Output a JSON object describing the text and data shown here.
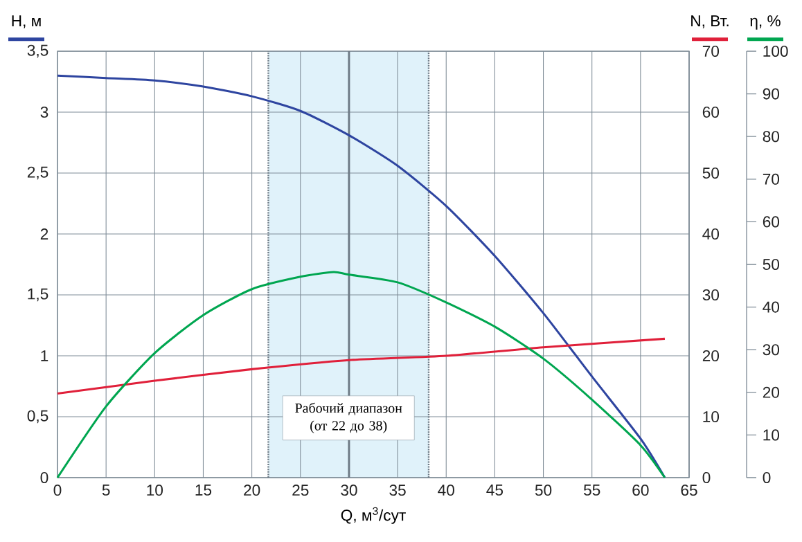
{
  "chart_data": {
    "type": "line",
    "xlabel": "Q, м$^{3}$/сут",
    "ylabel": "H, м",
    "y2label": "N, Вт.",
    "y3label": "η, %",
    "xlim": [
      0,
      65
    ],
    "xticks": [
      0,
      5,
      10,
      15,
      20,
      25,
      30,
      35,
      40,
      45,
      50,
      55,
      60,
      65
    ],
    "ylim": [
      0,
      3.5
    ],
    "yticks": [
      0,
      {
        "value": 0.5,
        "label": "0,5"
      },
      1,
      {
        "value": 1.5,
        "label": "1,5"
      },
      2,
      {
        "value": 2.5,
        "label": "2,5"
      },
      3,
      {
        "value": 3.5,
        "label": "3,5"
      }
    ],
    "y2lim": [
      0,
      70
    ],
    "y2ticks": [
      0,
      10,
      20,
      30,
      40,
      50,
      60,
      70
    ],
    "y3lim": [
      0,
      100
    ],
    "y3ticks": [
      0,
      10,
      20,
      30,
      40,
      50,
      60,
      70,
      80,
      90,
      100
    ],
    "grid": true,
    "marker": "none",
    "line_style": "solid",
    "series": [
      {
        "color": "#2e45a0",
        "x": [
          0,
          5,
          10,
          15,
          20,
          25,
          30,
          35,
          40,
          45,
          50,
          55,
          60,
          62.5
        ],
        "values": [
          3.3,
          3.28,
          3.26,
          3.21,
          3.13,
          3.01,
          2.81,
          2.56,
          2.23,
          1.82,
          1.35,
          0.83,
          0.32,
          0
        ]
      },
      {
        "color": "#e0203a",
        "axis": "y2",
        "x": [
          0,
          10,
          20,
          30,
          40,
          50,
          62.5
        ],
        "values": [
          13.8,
          15.9,
          17.8,
          19.3,
          20.0,
          21.4,
          22.8
        ]
      },
      {
        "color": "#00a650",
        "axis": "y3",
        "x": [
          0,
          5,
          10,
          15,
          20,
          25,
          28.4,
          30,
          35,
          40,
          45,
          50,
          55,
          60,
          62.5
        ],
        "values": [
          0,
          16.7,
          29.2,
          38.1,
          44.2,
          47.1,
          48.2,
          47.6,
          45.8,
          41.1,
          35.4,
          27.9,
          18.3,
          7.6,
          0
        ]
      }
    ],
    "bands": [
      {
        "axis": "x",
        "from": 21.7,
        "to": 38.2,
        "label": "Рабочий диапазон (от 22 до 38)",
        "color": "#e0f2fa"
      }
    ],
    "ref_lines": [
      {
        "axis": "x",
        "value": 21.7,
        "color": "#6d7a85",
        "line_style": "dotted"
      },
      {
        "axis": "x",
        "value": 38.2,
        "color": "#6d7a85",
        "line_style": "dotted"
      },
      {
        "axis": "x",
        "value": 30,
        "color": "#6d7a85",
        "line_style": "solid"
      }
    ]
  }
}
